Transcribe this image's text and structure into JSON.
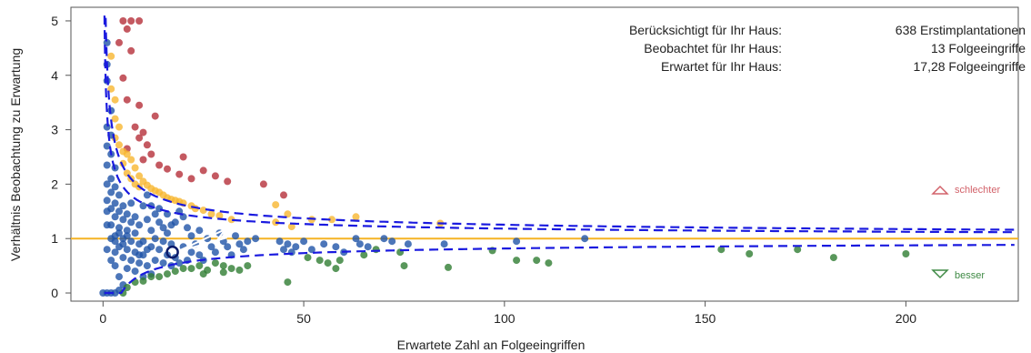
{
  "chart_data": {
    "type": "scatter",
    "title": "",
    "xlabel": "Erwartete Zahl an Folgeeingriffen",
    "ylabel": "Verhältnis Beobachtung zu Erwartung",
    "xlim": [
      -8,
      228
    ],
    "ylim": [
      -0.15,
      5.25
    ],
    "x_ticks": [
      0,
      50,
      100,
      150,
      200
    ],
    "y_ticks": [
      0,
      1,
      2,
      3,
      4,
      5
    ],
    "reference_line": {
      "y": 1,
      "color": "#f5b324"
    },
    "colors": {
      "worse": "#b5303a",
      "warning": "#f7b731",
      "normal": "#1f54a8",
      "better": "#2f7d32",
      "limit": "#1a1adf",
      "own": "#0a1a6a"
    },
    "info": [
      {
        "label": "Berücksichtigt für Ihr Haus:",
        "value": "638 Erstimplantationen"
      },
      {
        "label": "Beobachtet für Ihr Haus:",
        "value": "13 Folgeeingriffe"
      },
      {
        "label": "Erwartet für Ihr Haus:",
        "value": "17,28 Folgeeingriffe"
      }
    ],
    "legend": {
      "worse": "schlechter",
      "better": "besser"
    },
    "own_hospital": {
      "x": 17.28,
      "y": 0.75
    },
    "series": [
      {
        "category": "worse",
        "points": [
          [
            5,
            5.0
          ],
          [
            7,
            5.0
          ],
          [
            9,
            5.0
          ],
          [
            6,
            4.85
          ],
          [
            4,
            4.6
          ],
          [
            7,
            4.45
          ],
          [
            5,
            3.95
          ],
          [
            6,
            3.55
          ],
          [
            9,
            3.45
          ],
          [
            13,
            3.25
          ],
          [
            8,
            3.05
          ],
          [
            10,
            2.95
          ],
          [
            9,
            2.85
          ],
          [
            11,
            2.72
          ],
          [
            6,
            2.65
          ],
          [
            12,
            2.55
          ],
          [
            10,
            2.45
          ],
          [
            14,
            2.35
          ],
          [
            20,
            2.5
          ],
          [
            16,
            2.28
          ],
          [
            19,
            2.18
          ],
          [
            25,
            2.25
          ],
          [
            22,
            2.1
          ],
          [
            28,
            2.15
          ],
          [
            31,
            2.05
          ],
          [
            40,
            2.0
          ],
          [
            45,
            1.8
          ]
        ]
      },
      {
        "category": "warning",
        "points": [
          [
            2,
            4.35
          ],
          [
            2,
            3.75
          ],
          [
            3,
            3.55
          ],
          [
            3,
            3.2
          ],
          [
            4,
            3.05
          ],
          [
            3,
            2.85
          ],
          [
            4,
            2.72
          ],
          [
            5,
            2.6
          ],
          [
            6,
            2.55
          ],
          [
            7,
            2.45
          ],
          [
            5,
            2.38
          ],
          [
            8,
            2.3
          ],
          [
            6,
            2.2
          ],
          [
            9,
            2.15
          ],
          [
            7,
            2.1
          ],
          [
            10,
            2.05
          ],
          [
            8,
            2.0
          ],
          [
            11,
            1.98
          ],
          [
            12,
            1.92
          ],
          [
            13,
            1.88
          ],
          [
            9,
            1.95
          ],
          [
            14,
            1.85
          ],
          [
            15,
            1.8
          ],
          [
            16,
            1.75
          ],
          [
            17,
            1.72
          ],
          [
            18,
            1.7
          ],
          [
            19,
            1.68
          ],
          [
            20,
            1.65
          ],
          [
            22,
            1.6
          ],
          [
            23,
            1.55
          ],
          [
            25,
            1.52
          ],
          [
            27,
            1.45
          ],
          [
            29,
            1.42
          ],
          [
            32,
            1.35
          ],
          [
            43,
            1.62
          ],
          [
            46,
            1.45
          ],
          [
            43,
            1.3
          ],
          [
            47,
            1.22
          ],
          [
            52,
            1.35
          ],
          [
            57,
            1.35
          ],
          [
            63,
            1.4
          ],
          [
            84,
            1.28
          ]
        ]
      },
      {
        "category": "normal",
        "points": [
          [
            1,
            4.6
          ],
          [
            1,
            4.2
          ],
          [
            1,
            3.9
          ],
          [
            2,
            3.35
          ],
          [
            1,
            3.05
          ],
          [
            2,
            2.9
          ],
          [
            1,
            2.7
          ],
          [
            2,
            2.55
          ],
          [
            1,
            2.35
          ],
          [
            3,
            2.3
          ],
          [
            2,
            2.1
          ],
          [
            1,
            2.0
          ],
          [
            3,
            1.95
          ],
          [
            2,
            1.85
          ],
          [
            4,
            1.8
          ],
          [
            1,
            1.7
          ],
          [
            3,
            1.65
          ],
          [
            5,
            1.6
          ],
          [
            2,
            1.55
          ],
          [
            4,
            1.5
          ],
          [
            6,
            1.45
          ],
          [
            3,
            1.4
          ],
          [
            5,
            1.35
          ],
          [
            7,
            1.3
          ],
          [
            2,
            1.25
          ],
          [
            4,
            1.2
          ],
          [
            6,
            1.15
          ],
          [
            8,
            1.1
          ],
          [
            3,
            1.05
          ],
          [
            5,
            1.0
          ],
          [
            7,
            0.95
          ],
          [
            9,
            0.9
          ],
          [
            4,
            0.85
          ],
          [
            6,
            0.8
          ],
          [
            8,
            0.75
          ],
          [
            10,
            0.7
          ],
          [
            5,
            0.65
          ],
          [
            7,
            0.6
          ],
          [
            9,
            0.55
          ],
          [
            3,
            0.5
          ],
          [
            11,
            0.5
          ],
          [
            6,
            0.45
          ],
          [
            8,
            0.4
          ],
          [
            12,
            0.35
          ],
          [
            4,
            0.3
          ],
          [
            10,
            0.3
          ],
          [
            1,
            1.5
          ],
          [
            1,
            1.25
          ],
          [
            2,
            1.0
          ],
          [
            1,
            0.8
          ],
          [
            2,
            0.6
          ],
          [
            3,
            0.75
          ],
          [
            11,
            1.8
          ],
          [
            12,
            1.6
          ],
          [
            13,
            1.45
          ],
          [
            14,
            1.3
          ],
          [
            15,
            1.2
          ],
          [
            16,
            1.1
          ],
          [
            13,
            1.0
          ],
          [
            15,
            0.95
          ],
          [
            17,
            0.9
          ],
          [
            12,
            0.85
          ],
          [
            14,
            0.8
          ],
          [
            16,
            0.7
          ],
          [
            18,
            0.65
          ],
          [
            13,
            0.6
          ],
          [
            15,
            0.55
          ],
          [
            17,
            0.5
          ],
          [
            19,
            0.55
          ],
          [
            20,
            1.4
          ],
          [
            21,
            1.2
          ],
          [
            22,
            1.05
          ],
          [
            23,
            0.9
          ],
          [
            20,
            0.85
          ],
          [
            22,
            0.75
          ],
          [
            24,
            0.7
          ],
          [
            21,
            0.6
          ],
          [
            25,
            0.6
          ],
          [
            24,
            1.15
          ],
          [
            26,
            1.0
          ],
          [
            27,
            0.85
          ],
          [
            28,
            0.75
          ],
          [
            29,
            1.1
          ],
          [
            30,
            0.95
          ],
          [
            31,
            0.85
          ],
          [
            32,
            0.7
          ],
          [
            33,
            1.05
          ],
          [
            34,
            0.9
          ],
          [
            35,
            0.8
          ],
          [
            36,
            0.95
          ],
          [
            38,
            1.0
          ],
          [
            18,
            1.3
          ],
          [
            19,
            1.5
          ],
          [
            10,
            1.6
          ],
          [
            9,
            1.25
          ],
          [
            7,
            1.65
          ],
          [
            8,
            1.4
          ],
          [
            11,
            1.35
          ],
          [
            12,
            1.15
          ],
          [
            14,
            1.55
          ],
          [
            16,
            1.45
          ],
          [
            17,
            1.25
          ],
          [
            10,
            0.95
          ],
          [
            11,
            0.8
          ],
          [
            9,
            0.7
          ],
          [
            6,
            1.05
          ],
          [
            5,
            0.9
          ],
          [
            4,
            1.1
          ],
          [
            3,
            0.95
          ],
          [
            0,
            0
          ],
          [
            1,
            0
          ],
          [
            2,
            0
          ],
          [
            3,
            0
          ],
          [
            4,
            0.05
          ],
          [
            5,
            0.15
          ],
          [
            44,
            0.95
          ],
          [
            45,
            0.8
          ],
          [
            46,
            0.9
          ],
          [
            47,
            0.75
          ],
          [
            48,
            0.85
          ],
          [
            50,
            0.95
          ],
          [
            52,
            0.8
          ],
          [
            55,
            0.9
          ],
          [
            58,
            0.85
          ],
          [
            60,
            0.75
          ],
          [
            63,
            1.0
          ],
          [
            64,
            0.9
          ],
          [
            66,
            0.85
          ],
          [
            70,
            1.0
          ],
          [
            72,
            0.95
          ],
          [
            76,
            0.9
          ],
          [
            85,
            0.9
          ],
          [
            103,
            0.95
          ],
          [
            120,
            1.0
          ]
        ]
      },
      {
        "category": "better",
        "points": [
          [
            5,
            0.0
          ],
          [
            6,
            0.1
          ],
          [
            8,
            0.2
          ],
          [
            10,
            0.22
          ],
          [
            12,
            0.3
          ],
          [
            14,
            0.3
          ],
          [
            16,
            0.35
          ],
          [
            18,
            0.4
          ],
          [
            20,
            0.45
          ],
          [
            22,
            0.45
          ],
          [
            24,
            0.5
          ],
          [
            26,
            0.42
          ],
          [
            28,
            0.55
          ],
          [
            30,
            0.5
          ],
          [
            32,
            0.45
          ],
          [
            34,
            0.42
          ],
          [
            36,
            0.5
          ],
          [
            30,
            0.38
          ],
          [
            25,
            0.35
          ],
          [
            46,
            0.2
          ],
          [
            51,
            0.65
          ],
          [
            54,
            0.6
          ],
          [
            56,
            0.55
          ],
          [
            58,
            0.45
          ],
          [
            59,
            0.6
          ],
          [
            65,
            0.7
          ],
          [
            68,
            0.8
          ],
          [
            74,
            0.75
          ],
          [
            75,
            0.5
          ],
          [
            86,
            0.47
          ],
          [
            97,
            0.78
          ],
          [
            103,
            0.6
          ],
          [
            108,
            0.6
          ],
          [
            111,
            0.55
          ],
          [
            154,
            0.8
          ],
          [
            161,
            0.72
          ],
          [
            173,
            0.8
          ],
          [
            182,
            0.65
          ],
          [
            200,
            0.72
          ]
        ]
      }
    ]
  }
}
